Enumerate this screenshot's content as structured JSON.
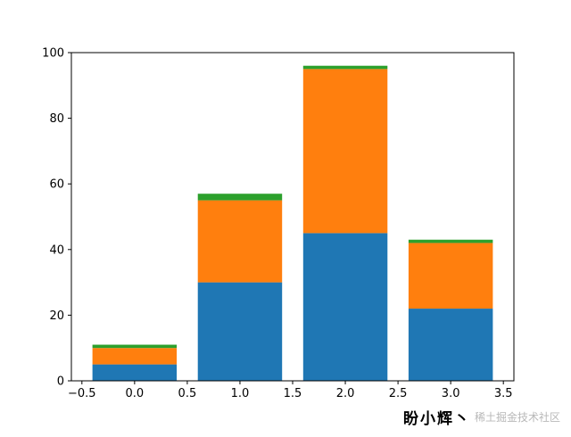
{
  "chart_data": {
    "type": "bar",
    "stacked": true,
    "x": [
      0,
      1,
      2,
      3
    ],
    "bar_width": 0.8,
    "series": [
      {
        "values": [
          5,
          30,
          45,
          22
        ],
        "color": "#1f77b4"
      },
      {
        "values": [
          5,
          25,
          50,
          20
        ],
        "color": "#ff7f0e"
      },
      {
        "values": [
          1,
          2,
          1,
          1
        ],
        "color": "#2ca02c"
      }
    ],
    "xlim": [
      -0.6,
      3.6
    ],
    "ylim": [
      0,
      100
    ],
    "xticks": [
      -0.5,
      0.0,
      0.5,
      1.0,
      1.5,
      2.0,
      2.5,
      3.0,
      3.5
    ],
    "xtick_labels": [
      "−0.5",
      "0.0",
      "0.5",
      "1.0",
      "1.5",
      "2.0",
      "2.5",
      "3.0",
      "3.5"
    ],
    "yticks": [
      0,
      20,
      40,
      60,
      80,
      100
    ],
    "ytick_labels": [
      "0",
      "20",
      "40",
      "60",
      "80",
      "100"
    ],
    "title": "",
    "xlabel": "",
    "ylabel": "",
    "grid": false,
    "legend": false
  },
  "watermark": {
    "author": "盼小辉丶",
    "site": "稀土掘金技术社区"
  }
}
